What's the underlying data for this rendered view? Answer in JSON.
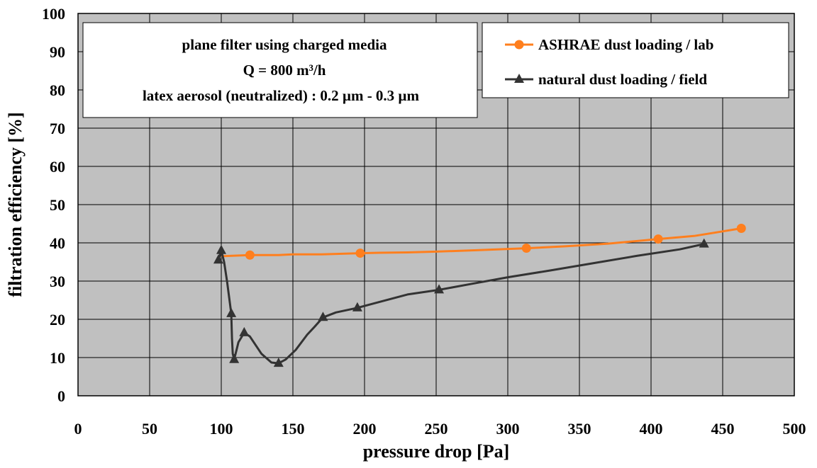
{
  "chart_data": {
    "type": "line",
    "xlabel": "pressure drop [Pa]",
    "ylabel": "filtration efficiency [%]",
    "xlim": [
      0,
      500
    ],
    "ylim": [
      0,
      100
    ],
    "x_ticks": [
      "0",
      "50",
      "100",
      "150",
      "200",
      "250",
      "300",
      "350",
      "400",
      "450",
      "500"
    ],
    "y_ticks": [
      "0",
      "10",
      "20",
      "30",
      "40",
      "50",
      "60",
      "70",
      "80",
      "90",
      "100"
    ],
    "grid": true,
    "plot_background": "#c0c0c0",
    "annotation": {
      "lines": [
        "plane filter using charged media",
        "Q = 800 m³/h",
        "latex aerosol (neutralized) : 0.2 µm - 0.3 µm"
      ],
      "position": "top-left"
    },
    "legend_position": "top-right",
    "series": [
      {
        "name": "ASHRAE dust loading / lab",
        "color": "#ff7f1e",
        "marker": "circle",
        "points": [
          [
            100,
            36.5
          ],
          [
            120,
            36.8
          ],
          [
            140,
            36.8
          ],
          [
            150,
            37.0
          ],
          [
            170,
            37.0
          ],
          [
            197,
            37.3
          ],
          [
            210,
            37.4
          ],
          [
            230,
            37.5
          ],
          [
            250,
            37.7
          ],
          [
            280,
            38.1
          ],
          [
            313,
            38.6
          ],
          [
            340,
            39.1
          ],
          [
            370,
            39.8
          ],
          [
            405,
            41.0
          ],
          [
            430,
            41.8
          ],
          [
            463,
            43.8
          ]
        ],
        "markers": [
          [
            120,
            36.8
          ],
          [
            197,
            37.3
          ],
          [
            313,
            38.6
          ],
          [
            405,
            41.0
          ],
          [
            463,
            43.8
          ]
        ]
      },
      {
        "name": "natural dust loading / field",
        "color": "#333333",
        "marker": "triangle",
        "points": [
          [
            98,
            35.5
          ],
          [
            100,
            38.0
          ],
          [
            102,
            35.0
          ],
          [
            104,
            30.0
          ],
          [
            107,
            21.5
          ],
          [
            107.5,
            15.0
          ],
          [
            108,
            11.0
          ],
          [
            109,
            9.5
          ],
          [
            110,
            11.0
          ],
          [
            112,
            14.0
          ],
          [
            116,
            16.5
          ],
          [
            120,
            15.5
          ],
          [
            128,
            11.0
          ],
          [
            135,
            8.7
          ],
          [
            140,
            8.5
          ],
          [
            145,
            9.5
          ],
          [
            152,
            12.0
          ],
          [
            160,
            16.0
          ],
          [
            165,
            18.0
          ],
          [
            171,
            20.5
          ],
          [
            180,
            21.8
          ],
          [
            195,
            23.0
          ],
          [
            210,
            24.5
          ],
          [
            230,
            26.5
          ],
          [
            252,
            27.7
          ],
          [
            275,
            29.3
          ],
          [
            300,
            31.0
          ],
          [
            330,
            32.8
          ],
          [
            360,
            34.7
          ],
          [
            390,
            36.6
          ],
          [
            420,
            38.3
          ],
          [
            437,
            39.7
          ]
        ],
        "markers": [
          [
            98,
            35.5
          ],
          [
            100,
            38.0
          ],
          [
            107,
            21.5
          ],
          [
            109,
            9.5
          ],
          [
            116,
            16.5
          ],
          [
            140,
            8.5
          ],
          [
            171,
            20.5
          ],
          [
            195,
            23.0
          ],
          [
            252,
            27.7
          ],
          [
            437,
            39.7
          ]
        ]
      }
    ]
  }
}
